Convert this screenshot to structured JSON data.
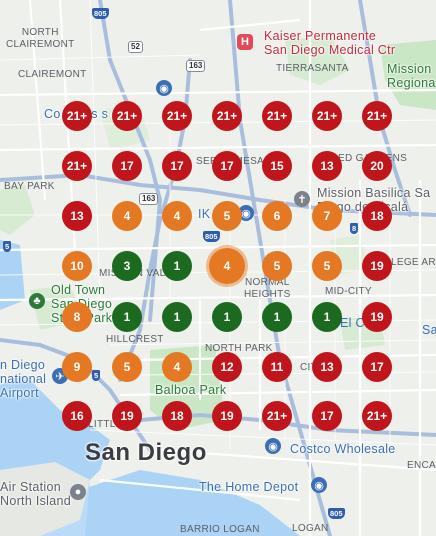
{
  "map": {
    "colors": {
      "red": "#c0161b",
      "orange": "#e57822",
      "green": "#1b6a1f",
      "water": "#aad3f6",
      "park": "#c9e6c5",
      "road": "#ffffff",
      "highway": "#9fb8d8"
    },
    "place_labels": {
      "north_clairemont": "NORTH\nCLAIREMONT",
      "clairemont": "CLAIREMONT",
      "tierrasanta": "TIERRASANTA",
      "bay_park": "BAY PARK",
      "mission_valley": "MISSION VAL",
      "normal_heights": "NORMAL\nHEIGHTS",
      "mid_city": "MID-CITY",
      "college_area": "LEGE ARE",
      "hillcrest": "HILLCREST",
      "north_park": "NORTH PARK",
      "little_italy": "LITTLE IT",
      "serra_mesa": "SERRA MESA",
      "grantville": "ED GARDENS",
      "city_heights": "CITY",
      "sherman": "ENCA",
      "barrio_logan": "BARRIO LOGAN",
      "logan": "LOGAN",
      "el_ce": "El Ce",
      "sa": "Sa"
    },
    "poi_labels": {
      "kaiser": "Kaiser Permanente\nSan Diego Medical Ctr",
      "mission_regional": "Mission\nRegiona",
      "mission_basilica": "Mission Basilica Sa\nDiego de Alcalá",
      "convoy": "Co   a Bus   s Ce",
      "old_town": "Old Town\nSan Diego\nState Park",
      "airport": "n Diego\nnational\nAirport",
      "balboa": "Balboa Park",
      "san_diego": "San Diego",
      "costco": "Costco Wholesale",
      "home_depot": "The Home Depot",
      "air_station": "Air Station\nNorth Island",
      "ikea": "IK"
    },
    "shields": {
      "i805_top": "805",
      "s52": "52",
      "s163_top": "163",
      "s163_mid": "163",
      "i805_mid": "805",
      "i8": "8",
      "i5_left": "5",
      "i5_mid": "5",
      "i805_bottom": "805"
    },
    "clusters": [
      {
        "label": "21+",
        "color": "red"
      },
      {
        "label": "21+",
        "color": "red"
      },
      {
        "label": "21+",
        "color": "red"
      },
      {
        "label": "21+",
        "color": "red"
      },
      {
        "label": "21+",
        "color": "red"
      },
      {
        "label": "21+",
        "color": "red"
      },
      {
        "label": "21+",
        "color": "red"
      },
      {
        "label": "21+",
        "color": "red"
      },
      {
        "label": "17",
        "color": "red"
      },
      {
        "label": "17",
        "color": "red"
      },
      {
        "label": "17",
        "color": "red"
      },
      {
        "label": "15",
        "color": "red"
      },
      {
        "label": "13",
        "color": "red"
      },
      {
        "label": "20",
        "color": "red"
      },
      {
        "label": "13",
        "color": "red"
      },
      {
        "label": "4",
        "color": "orange"
      },
      {
        "label": "4",
        "color": "orange"
      },
      {
        "label": "5",
        "color": "orange"
      },
      {
        "label": "6",
        "color": "orange"
      },
      {
        "label": "7",
        "color": "orange"
      },
      {
        "label": "18",
        "color": "red"
      },
      {
        "label": "10",
        "color": "orange"
      },
      {
        "label": "3",
        "color": "green"
      },
      {
        "label": "1",
        "color": "green"
      },
      {
        "label": "4",
        "color": "orange",
        "selected": true
      },
      {
        "label": "5",
        "color": "orange"
      },
      {
        "label": "5",
        "color": "orange"
      },
      {
        "label": "19",
        "color": "red"
      },
      {
        "label": "8",
        "color": "orange"
      },
      {
        "label": "1",
        "color": "green"
      },
      {
        "label": "1",
        "color": "green"
      },
      {
        "label": "1",
        "color": "green"
      },
      {
        "label": "1",
        "color": "green"
      },
      {
        "label": "1",
        "color": "green"
      },
      {
        "label": "19",
        "color": "red"
      },
      {
        "label": "9",
        "color": "orange"
      },
      {
        "label": "5",
        "color": "orange"
      },
      {
        "label": "4",
        "color": "orange"
      },
      {
        "label": "12",
        "color": "red"
      },
      {
        "label": "11",
        "color": "red"
      },
      {
        "label": "13",
        "color": "red"
      },
      {
        "label": "17",
        "color": "red"
      },
      {
        "label": "16",
        "color": "red"
      },
      {
        "label": "19",
        "color": "red"
      },
      {
        "label": "18",
        "color": "red"
      },
      {
        "label": "19",
        "color": "red"
      },
      {
        "label": "21+",
        "color": "red"
      },
      {
        "label": "17",
        "color": "red"
      },
      {
        "label": "21+",
        "color": "red"
      }
    ]
  }
}
